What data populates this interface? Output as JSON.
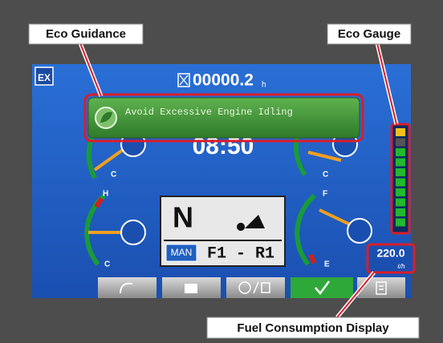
{
  "callouts": {
    "eco_guidance": "Eco Guidance",
    "eco_gauge": "Eco Gauge",
    "fuel_consumption": "Fuel Consumption Display"
  },
  "screen": {
    "hour_meter": "00000.2",
    "hour_unit": "h",
    "guidance_message": "Avoid Excessive Engine Idling",
    "clock": "08:50",
    "gauges": {
      "top_left_low": "C",
      "top_right_low": "C",
      "hydraulic_high": "H",
      "hydraulic_low": "C",
      "fuel_full": "F",
      "fuel_empty": "E"
    },
    "gear": "N",
    "mode": "MAN",
    "shift": "F1 - R1",
    "fuel_rate": "220.0",
    "fuel_unit": "ℓ/h"
  }
}
